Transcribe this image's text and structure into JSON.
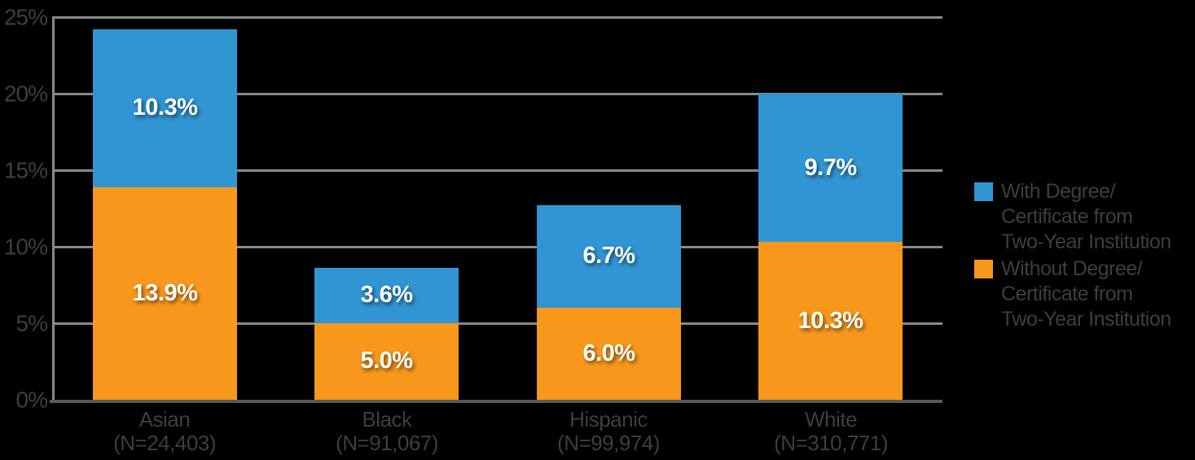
{
  "colors": {
    "blue": "#3095D2",
    "orange": "#F7981D",
    "gridline": "#87898C",
    "baseline": "#58595B",
    "axis_text": "#3E3E40",
    "value_label_text": "#FFFFFF",
    "background": "#000000"
  },
  "chart_data": {
    "type": "bar",
    "stacked": true,
    "grid": true,
    "legend_position": "right",
    "categories": [
      "Asian",
      "Black",
      "Hispanic",
      "White"
    ],
    "category_sublabels": [
      "(N=24,403)",
      "(N=91,067)",
      "(N=99,974)",
      "(N=310,771)"
    ],
    "series": [
      {
        "name": "Without Degree/Certificate from Two-Year Institution",
        "color_key": "orange",
        "stack_position": "bottom",
        "values": [
          13.9,
          5.0,
          6.0,
          10.3
        ],
        "labels": [
          "13.9%",
          "5.0%",
          "6.0%",
          "10.3%"
        ]
      },
      {
        "name": "With Degree/Certificate from Two-Year Institution",
        "color_key": "blue",
        "stack_position": "top",
        "values": [
          10.3,
          3.6,
          6.7,
          9.7
        ],
        "labels": [
          "10.3%",
          "3.6%",
          "6.7%",
          "9.7%"
        ]
      }
    ],
    "y_axis": {
      "min": 0,
      "max": 25,
      "tick_interval": 5,
      "tick_labels": [
        "0%",
        "5%",
        "10%",
        "15%",
        "20%",
        "25%"
      ]
    },
    "legend": [
      {
        "color_key": "blue",
        "lines": [
          "With Degree/",
          "Certificate from",
          "Two-Year Institution"
        ]
      },
      {
        "color_key": "orange",
        "lines": [
          "Without Degree/",
          "Certificate from",
          "Two-Year Institution"
        ]
      }
    ]
  }
}
